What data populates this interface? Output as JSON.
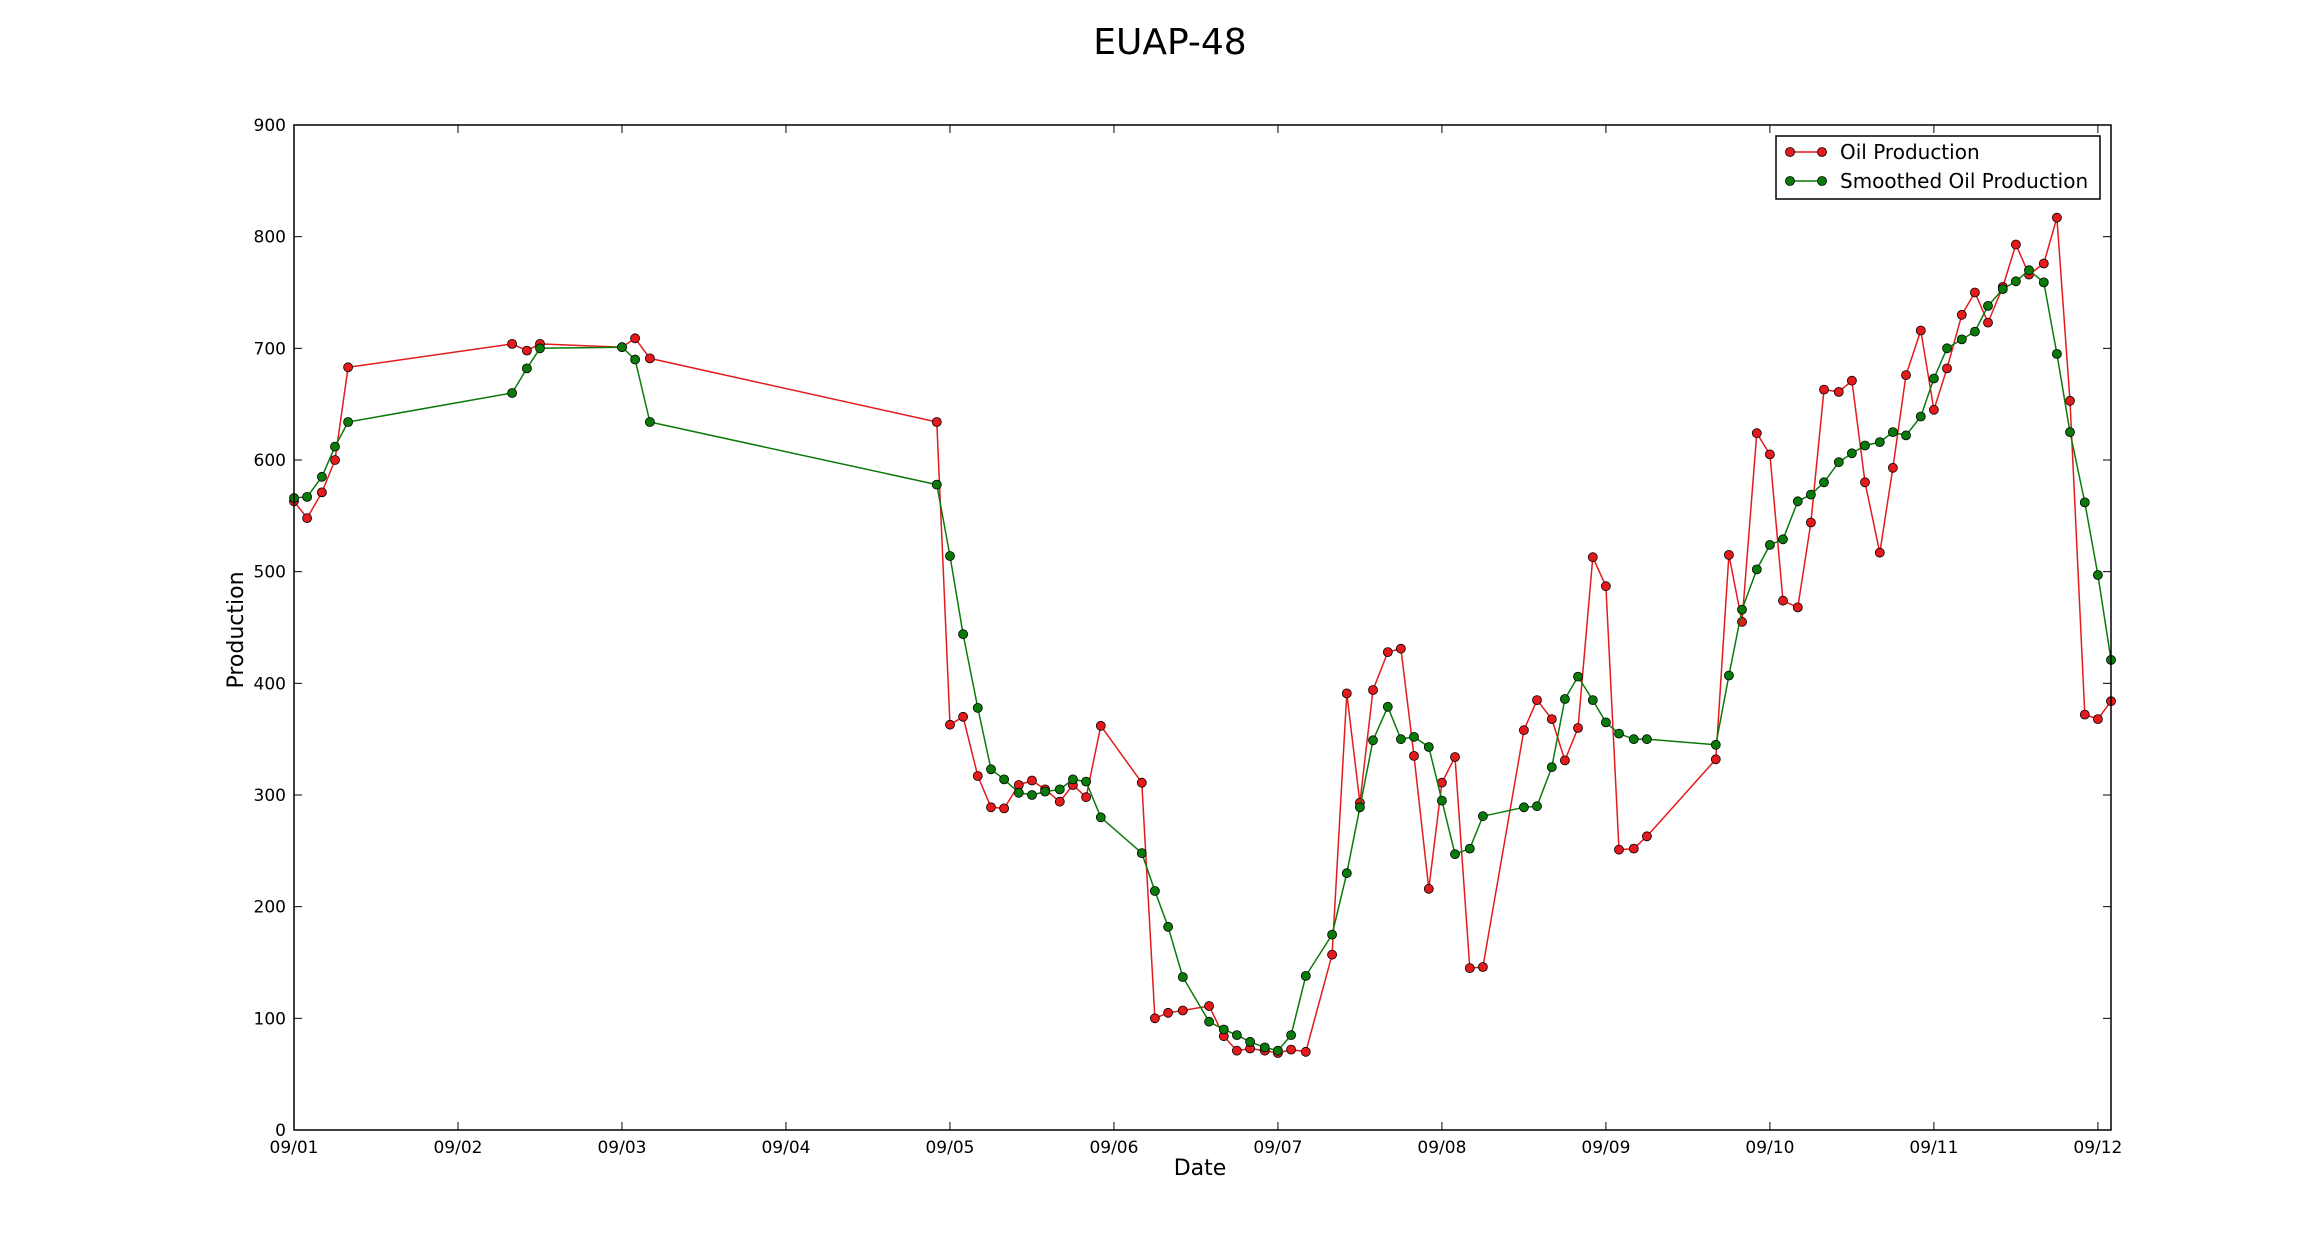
{
  "chart_data": {
    "type": "line",
    "title": "EUAP-48",
    "xlabel": "Date",
    "ylabel": "Production",
    "x_range_days": [
      0,
      11.08
    ],
    "ylim": [
      0,
      900
    ],
    "x_ticks": [
      {
        "value": 0,
        "label": "09/01"
      },
      {
        "value": 1,
        "label": "09/02"
      },
      {
        "value": 2,
        "label": "09/03"
      },
      {
        "value": 3,
        "label": "09/04"
      },
      {
        "value": 4,
        "label": "09/05"
      },
      {
        "value": 5,
        "label": "09/06"
      },
      {
        "value": 6,
        "label": "09/07"
      },
      {
        "value": 7,
        "label": "09/08"
      },
      {
        "value": 8,
        "label": "09/09"
      },
      {
        "value": 9,
        "label": "09/10"
      },
      {
        "value": 10,
        "label": "09/11"
      },
      {
        "value": 11,
        "label": "09/12"
      }
    ],
    "y_ticks": [
      0,
      100,
      200,
      300,
      400,
      500,
      600,
      700,
      800,
      900
    ],
    "legend_position": "top-right",
    "series": [
      {
        "name": "Oil Production",
        "color": "#e41a1c",
        "points": [
          [
            0.0,
            563
          ],
          [
            0.08,
            548
          ],
          [
            0.17,
            571
          ],
          [
            0.25,
            600
          ],
          [
            0.33,
            683
          ],
          [
            1.33,
            704
          ],
          [
            1.42,
            698
          ],
          [
            1.5,
            704
          ],
          [
            2.0,
            701
          ],
          [
            2.08,
            709
          ],
          [
            2.17,
            691
          ],
          [
            3.92,
            634
          ],
          [
            4.0,
            363
          ],
          [
            4.08,
            370
          ],
          [
            4.17,
            317
          ],
          [
            4.25,
            289
          ],
          [
            4.33,
            288
          ],
          [
            4.42,
            309
          ],
          [
            4.5,
            313
          ],
          [
            4.58,
            305
          ],
          [
            4.67,
            294
          ],
          [
            4.75,
            309
          ],
          [
            4.83,
            298
          ],
          [
            4.92,
            362
          ],
          [
            5.17,
            311
          ],
          [
            5.25,
            100
          ],
          [
            5.33,
            105
          ],
          [
            5.42,
            107
          ],
          [
            5.58,
            111
          ],
          [
            5.67,
            84
          ],
          [
            5.75,
            71
          ],
          [
            5.83,
            73
          ],
          [
            5.92,
            71
          ],
          [
            6.0,
            69
          ],
          [
            6.08,
            72
          ],
          [
            6.17,
            70
          ],
          [
            6.33,
            157
          ],
          [
            6.42,
            391
          ],
          [
            6.5,
            293
          ],
          [
            6.58,
            394
          ],
          [
            6.67,
            428
          ],
          [
            6.75,
            431
          ],
          [
            6.83,
            335
          ],
          [
            6.92,
            216
          ],
          [
            7.0,
            311
          ],
          [
            7.08,
            334
          ],
          [
            7.17,
            145
          ],
          [
            7.25,
            146
          ],
          [
            7.5,
            358
          ],
          [
            7.58,
            385
          ],
          [
            7.67,
            368
          ],
          [
            7.75,
            331
          ],
          [
            7.83,
            360
          ],
          [
            7.92,
            513
          ],
          [
            8.0,
            487
          ],
          [
            8.08,
            251
          ],
          [
            8.17,
            252
          ],
          [
            8.25,
            263
          ],
          [
            8.67,
            332
          ],
          [
            8.75,
            515
          ],
          [
            8.83,
            455
          ],
          [
            8.92,
            624
          ],
          [
            9.0,
            605
          ],
          [
            9.08,
            474
          ],
          [
            9.17,
            468
          ],
          [
            9.25,
            544
          ],
          [
            9.33,
            663
          ],
          [
            9.42,
            661
          ],
          [
            9.5,
            671
          ],
          [
            9.58,
            580
          ],
          [
            9.67,
            517
          ],
          [
            9.75,
            593
          ],
          [
            9.83,
            676
          ],
          [
            9.92,
            716
          ],
          [
            10.0,
            645
          ],
          [
            10.08,
            682
          ],
          [
            10.17,
            730
          ],
          [
            10.25,
            750
          ],
          [
            10.33,
            723
          ],
          [
            10.42,
            755
          ],
          [
            10.5,
            793
          ],
          [
            10.58,
            766
          ],
          [
            10.67,
            776
          ],
          [
            10.75,
            817
          ],
          [
            10.83,
            653
          ],
          [
            10.92,
            372
          ],
          [
            11.0,
            368
          ],
          [
            11.08,
            384
          ]
        ]
      },
      {
        "name": "Smoothed Oil Production",
        "color": "#0a7a0a",
        "points": [
          [
            0.0,
            566
          ],
          [
            0.08,
            567
          ],
          [
            0.17,
            585
          ],
          [
            0.25,
            612
          ],
          [
            0.33,
            634
          ],
          [
            1.33,
            660
          ],
          [
            1.42,
            682
          ],
          [
            1.5,
            700
          ],
          [
            2.0,
            701
          ],
          [
            2.08,
            690
          ],
          [
            2.17,
            634
          ],
          [
            3.92,
            578
          ],
          [
            4.0,
            514
          ],
          [
            4.08,
            444
          ],
          [
            4.17,
            378
          ],
          [
            4.25,
            323
          ],
          [
            4.33,
            314
          ],
          [
            4.42,
            302
          ],
          [
            4.5,
            300
          ],
          [
            4.58,
            303
          ],
          [
            4.67,
            305
          ],
          [
            4.75,
            314
          ],
          [
            4.83,
            312
          ],
          [
            4.92,
            280
          ],
          [
            5.17,
            248
          ],
          [
            5.25,
            214
          ],
          [
            5.33,
            182
          ],
          [
            5.42,
            137
          ],
          [
            5.58,
            97
          ],
          [
            5.67,
            90
          ],
          [
            5.75,
            85
          ],
          [
            5.83,
            79
          ],
          [
            5.92,
            74
          ],
          [
            6.0,
            71
          ],
          [
            6.08,
            85
          ],
          [
            6.17,
            138
          ],
          [
            6.33,
            175
          ],
          [
            6.42,
            230
          ],
          [
            6.5,
            289
          ],
          [
            6.58,
            349
          ],
          [
            6.67,
            379
          ],
          [
            6.75,
            350
          ],
          [
            6.83,
            352
          ],
          [
            6.92,
            343
          ],
          [
            7.0,
            295
          ],
          [
            7.08,
            247
          ],
          [
            7.17,
            252
          ],
          [
            7.25,
            281
          ],
          [
            7.5,
            289
          ],
          [
            7.58,
            290
          ],
          [
            7.67,
            325
          ],
          [
            7.75,
            386
          ],
          [
            7.83,
            406
          ],
          [
            7.92,
            385
          ],
          [
            8.0,
            365
          ],
          [
            8.08,
            355
          ],
          [
            8.17,
            350
          ],
          [
            8.25,
            350
          ],
          [
            8.67,
            345
          ],
          [
            8.75,
            407
          ],
          [
            8.83,
            466
          ],
          [
            8.92,
            502
          ],
          [
            9.0,
            524
          ],
          [
            9.08,
            529
          ],
          [
            9.17,
            563
          ],
          [
            9.25,
            569
          ],
          [
            9.33,
            580
          ],
          [
            9.42,
            598
          ],
          [
            9.5,
            606
          ],
          [
            9.58,
            613
          ],
          [
            9.67,
            616
          ],
          [
            9.75,
            625
          ],
          [
            9.83,
            622
          ],
          [
            9.92,
            639
          ],
          [
            10.0,
            673
          ],
          [
            10.08,
            700
          ],
          [
            10.17,
            708
          ],
          [
            10.25,
            715
          ],
          [
            10.33,
            738
          ],
          [
            10.42,
            753
          ],
          [
            10.5,
            760
          ],
          [
            10.58,
            770
          ],
          [
            10.67,
            759
          ],
          [
            10.75,
            695
          ],
          [
            10.83,
            625
          ],
          [
            10.92,
            562
          ],
          [
            11.0,
            497
          ],
          [
            11.08,
            421
          ]
        ]
      }
    ]
  }
}
